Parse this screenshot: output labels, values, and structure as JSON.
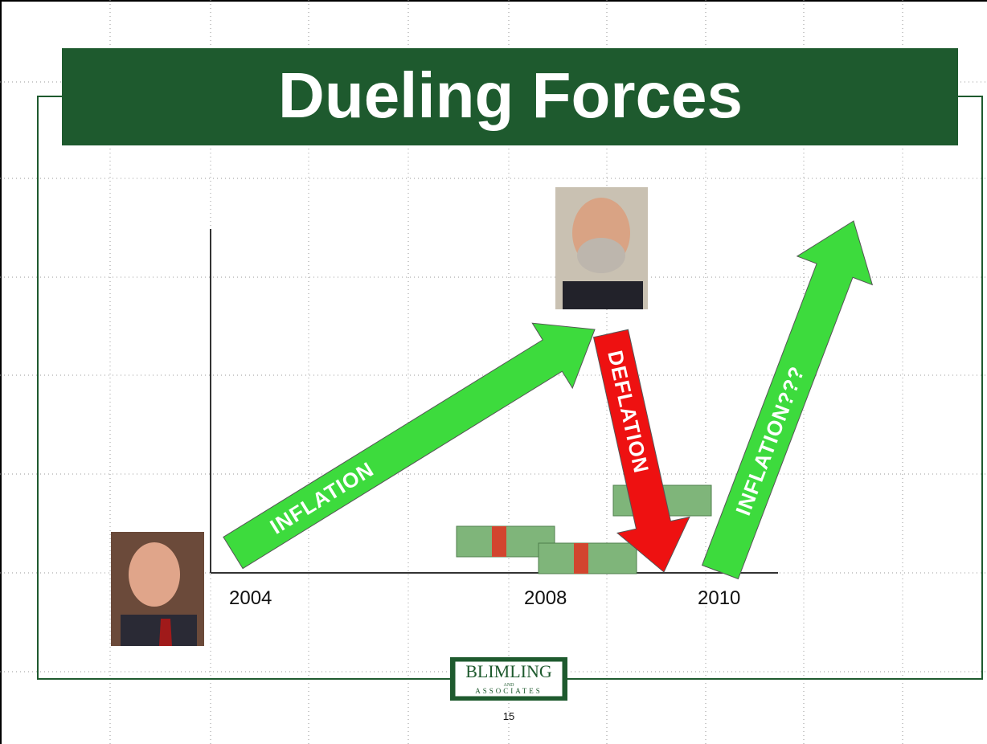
{
  "slide": {
    "title": "Dueling Forces",
    "arrows": [
      "INFLATION",
      "DEFLATION",
      "INFLATION???"
    ],
    "years": [
      "2004",
      "2008",
      "2010"
    ],
    "logo": {
      "name": "BLIMLING",
      "and": "AND",
      "sub": "ASSOCIATES"
    },
    "page_number": "15"
  }
}
